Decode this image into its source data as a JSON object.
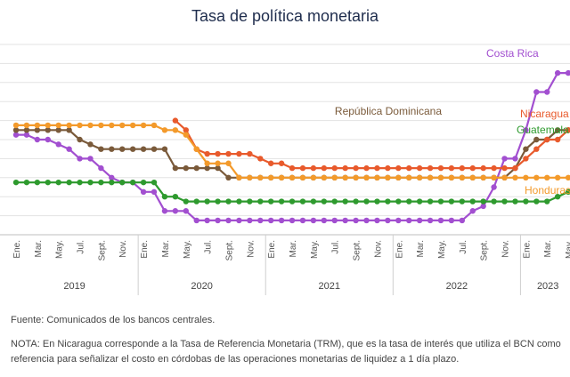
{
  "chart_data": {
    "type": "line",
    "title": "Tasa de política monetaria",
    "xlabel": "",
    "ylabel": "",
    "ylim": [
      0,
      10
    ],
    "grid": true,
    "x_index_range": [
      0,
      52
    ],
    "x_tick_labels": [
      "Ene.",
      "Mar.",
      "May.",
      "Jul.",
      "Sept.",
      "Nov.",
      "Ene.",
      "Mar.",
      "May.",
      "Jul.",
      "Sept.",
      "Nov.",
      "Ene.",
      "Mar.",
      "May.",
      "Jul.",
      "Sept.",
      "Nov.",
      "Ene.",
      "Mar.",
      "May.",
      "Jul.",
      "Sept.",
      "Nov.",
      "Ene.",
      "Mar.",
      "May."
    ],
    "year_labels": [
      "2019",
      "2020",
      "2021",
      "2022",
      "2023"
    ],
    "series": [
      {
        "name": "Costa Rica",
        "color": "#a24fd0",
        "x": [
          0,
          1,
          2,
          3,
          4,
          5,
          6,
          7,
          8,
          9,
          10,
          11,
          12,
          13,
          14,
          15,
          16,
          17,
          18,
          19,
          20,
          21,
          22,
          23,
          24,
          25,
          26,
          27,
          28,
          29,
          30,
          31,
          32,
          33,
          34,
          35,
          36,
          37,
          38,
          39,
          40,
          41,
          42,
          43,
          44,
          45,
          46,
          47,
          48,
          49,
          50,
          51,
          52
        ],
        "y": [
          5.25,
          5.25,
          5.0,
          5.0,
          4.75,
          4.5,
          4.0,
          4.0,
          3.5,
          3.0,
          2.75,
          2.75,
          2.25,
          2.25,
          1.25,
          1.25,
          1.25,
          0.75,
          0.75,
          0.75,
          0.75,
          0.75,
          0.75,
          0.75,
          0.75,
          0.75,
          0.75,
          0.75,
          0.75,
          0.75,
          0.75,
          0.75,
          0.75,
          0.75,
          0.75,
          0.75,
          0.75,
          0.75,
          0.75,
          0.75,
          0.75,
          0.75,
          0.75,
          1.25,
          1.5,
          2.5,
          4.0,
          4.0,
          5.5,
          7.5,
          7.5,
          8.5,
          8.5
        ]
      },
      {
        "name": "República Dominicana",
        "color": "#7a5a3a",
        "x": [
          0,
          1,
          2,
          3,
          4,
          5,
          6,
          7,
          8,
          9,
          10,
          11,
          12,
          13,
          14,
          15,
          16,
          17,
          18,
          19,
          20,
          21,
          22,
          23,
          24,
          25,
          26,
          27,
          28,
          29,
          30,
          31,
          32,
          33,
          34,
          35,
          36,
          37,
          38,
          39,
          40,
          41,
          42,
          43,
          44,
          45,
          46,
          47,
          48,
          49,
          50,
          51,
          52
        ],
        "y": [
          5.5,
          5.5,
          5.5,
          5.5,
          5.5,
          5.5,
          5.0,
          4.75,
          4.5,
          4.5,
          4.5,
          4.5,
          4.5,
          4.5,
          4.5,
          3.5,
          3.5,
          3.5,
          3.5,
          3.5,
          3.0,
          3.0,
          3.0,
          3.0,
          3.0,
          3.0,
          3.0,
          3.0,
          3.0,
          3.0,
          3.0,
          3.0,
          3.0,
          3.0,
          3.0,
          3.0,
          3.0,
          3.0,
          3.0,
          3.0,
          3.0,
          3.0,
          3.0,
          3.0,
          3.0,
          3.0,
          3.0,
          3.5,
          4.5,
          5.0,
          5.0,
          5.5,
          5.5
        ]
      },
      {
        "name": "Nicaragua",
        "color": "#e85a2c",
        "x": [
          15,
          16,
          17,
          18,
          19,
          20,
          21,
          22,
          23,
          24,
          25,
          26,
          27,
          28,
          29,
          30,
          31,
          32,
          33,
          34,
          35,
          36,
          37,
          38,
          39,
          40,
          41,
          42,
          43,
          44,
          45,
          46,
          47,
          48,
          49,
          50,
          51,
          52
        ],
        "y": [
          6.0,
          5.5,
          4.5,
          4.25,
          4.25,
          4.25,
          4.25,
          4.25,
          4.0,
          3.75,
          3.75,
          3.5,
          3.5,
          3.5,
          3.5,
          3.5,
          3.5,
          3.5,
          3.5,
          3.5,
          3.5,
          3.5,
          3.5,
          3.5,
          3.5,
          3.5,
          3.5,
          3.5,
          3.5,
          3.5,
          3.5,
          3.5,
          3.5,
          4.0,
          4.5,
          5.0,
          5.0,
          5.5
        ]
      },
      {
        "name": "Guatemala",
        "color": "#2e9a2e",
        "x": [
          0,
          1,
          2,
          3,
          4,
          5,
          6,
          7,
          8,
          9,
          10,
          11,
          12,
          13,
          14,
          15,
          16,
          17,
          18,
          19,
          20,
          21,
          22,
          23,
          24,
          25,
          26,
          27,
          28,
          29,
          30,
          31,
          32,
          33,
          34,
          35,
          36,
          37,
          38,
          39,
          40,
          41,
          42,
          43,
          44,
          45,
          46,
          47,
          48,
          49,
          50,
          51,
          52
        ],
        "y": [
          2.75,
          2.75,
          2.75,
          2.75,
          2.75,
          2.75,
          2.75,
          2.75,
          2.75,
          2.75,
          2.75,
          2.75,
          2.75,
          2.75,
          2.0,
          2.0,
          1.75,
          1.75,
          1.75,
          1.75,
          1.75,
          1.75,
          1.75,
          1.75,
          1.75,
          1.75,
          1.75,
          1.75,
          1.75,
          1.75,
          1.75,
          1.75,
          1.75,
          1.75,
          1.75,
          1.75,
          1.75,
          1.75,
          1.75,
          1.75,
          1.75,
          1.75,
          1.75,
          1.75,
          1.75,
          1.75,
          1.75,
          1.75,
          1.75,
          1.75,
          1.75,
          2.0,
          2.25
        ]
      },
      {
        "name": "Honduras",
        "color": "#f39a2b",
        "x": [
          0,
          1,
          2,
          3,
          4,
          5,
          6,
          7,
          8,
          9,
          10,
          11,
          12,
          13,
          14,
          15,
          16,
          17,
          18,
          19,
          20,
          21,
          22,
          23,
          24,
          25,
          26,
          27,
          28,
          29,
          30,
          31,
          32,
          33,
          34,
          35,
          36,
          37,
          38,
          39,
          40,
          41,
          42,
          43,
          44,
          45,
          46,
          47,
          48,
          49,
          50,
          51,
          52
        ],
        "y": [
          5.75,
          5.75,
          5.75,
          5.75,
          5.75,
          5.75,
          5.75,
          5.75,
          5.75,
          5.75,
          5.75,
          5.75,
          5.75,
          5.75,
          5.5,
          5.5,
          5.25,
          4.5,
          3.75,
          3.75,
          3.75,
          3.0,
          3.0,
          3.0,
          3.0,
          3.0,
          3.0,
          3.0,
          3.0,
          3.0,
          3.0,
          3.0,
          3.0,
          3.0,
          3.0,
          3.0,
          3.0,
          3.0,
          3.0,
          3.0,
          3.0,
          3.0,
          3.0,
          3.0,
          3.0,
          3.0,
          3.0,
          3.0,
          3.0,
          3.0,
          3.0,
          3.0,
          3.0
        ]
      }
    ]
  },
  "source": "Fuente: Comunicados de los bancos centrales.",
  "note": "NOTA: En Nicaragua corresponde a la Tasa de Referencia Monetaria (TRM), que es la tasa de interés que utiliza el BCN como referencia para señalizar el costo en córdobas de las operaciones monetarias de liquidez a 1 día plazo."
}
